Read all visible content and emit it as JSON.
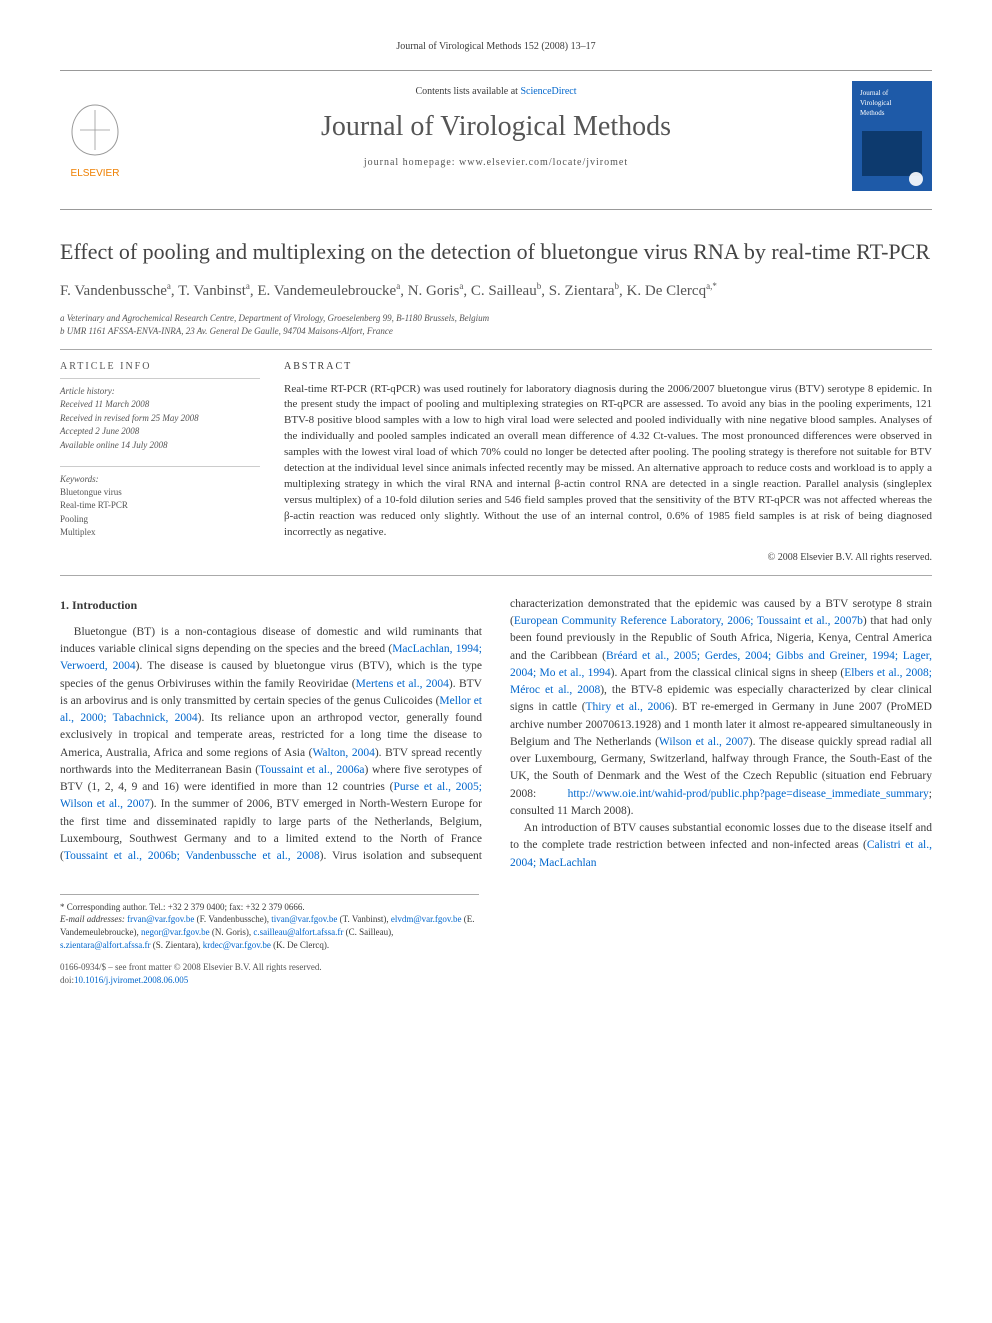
{
  "citation": "Journal of Virological Methods 152 (2008) 13–17",
  "masthead": {
    "contents_prefix": "Contents lists available at ",
    "contents_link": "ScienceDirect",
    "journal_name": "Journal of Virological Methods",
    "homepage_prefix": "journal homepage: ",
    "homepage_url": "www.elsevier.com/locate/jviromet",
    "publisher_logo_label": "ELSEVIER",
    "cover_label": "Journal of Virological Methods"
  },
  "title": "Effect of pooling and multiplexing on the detection of bluetongue virus RNA by real-time RT-PCR",
  "authors_html": "F. Vandenbussche<sup>a</sup>, T. Vanbinst<sup>a</sup>, E. Vandemeulebroucke<sup>a</sup>, N. Goris<sup>a</sup>, C. Sailleau<sup>b</sup>, S. Zientara<sup>b</sup>, K. De Clercq<sup>a,*</sup>",
  "affiliations": [
    "a Veterinary and Agrochemical Research Centre, Department of Virology, Groeselenberg 99, B-1180 Brussels, Belgium",
    "b UMR 1161 AFSSA-ENVA-INRA, 23 Av. General De Gaulle, 94704 Maisons-Alfort, France"
  ],
  "article_info_label": "ARTICLE INFO",
  "history_label": "Article history:",
  "history": [
    "Received 11 March 2008",
    "Received in revised form 25 May 2008",
    "Accepted 2 June 2008",
    "Available online 14 July 2008"
  ],
  "keywords_label": "Keywords:",
  "keywords": [
    "Bluetongue virus",
    "Real-time RT-PCR",
    "Pooling",
    "Multiplex"
  ],
  "abstract_label": "ABSTRACT",
  "abstract": "Real-time RT-PCR (RT-qPCR) was used routinely for laboratory diagnosis during the 2006/2007 bluetongue virus (BTV) serotype 8 epidemic. In the present study the impact of pooling and multiplexing strategies on RT-qPCR are assessed. To avoid any bias in the pooling experiments, 121 BTV-8 positive blood samples with a low to high viral load were selected and pooled individually with nine negative blood samples. Analyses of the individually and pooled samples indicated an overall mean difference of 4.32 Ct-values. The most pronounced differences were observed in samples with the lowest viral load of which 70% could no longer be detected after pooling. The pooling strategy is therefore not suitable for BTV detection at the individual level since animals infected recently may be missed. An alternative approach to reduce costs and workload is to apply a multiplexing strategy in which the viral RNA and internal β-actin control RNA are detected in a single reaction. Parallel analysis (singleplex versus multiplex) of a 10-fold dilution series and 546 field samples proved that the sensitivity of the BTV RT-qPCR was not affected whereas the β-actin reaction was reduced only slightly. Without the use of an internal control, 0.6% of 1985 field samples is at risk of being diagnosed incorrectly as negative.",
  "copyright": "© 2008 Elsevier B.V. All rights reserved.",
  "section1_heading": "1. Introduction",
  "intro_para1_a": "Bluetongue (BT) is a non-contagious disease of domestic and wild ruminants that induces variable clinical signs depending on the species and the breed (",
  "intro_ref1": "MacLachlan, 1994; Verwoerd, 2004",
  "intro_para1_b": "). The disease is caused by bluetongue virus (BTV), which is the type species of the genus Orbiviruses within the family Reoviridae (",
  "intro_ref2": "Mertens et al., 2004",
  "intro_para1_c": "). BTV is an arbovirus and is only transmitted by certain species of the genus Culicoides (",
  "intro_ref3": "Mellor et al., 2000; Tabachnick, 2004",
  "intro_para1_d": "). Its reliance upon an arthropod vector, generally found exclusively in tropical and temperate areas, restricted for a long time the disease to America, Australia, Africa and some regions of Asia (",
  "intro_ref4": "Walton, 2004",
  "intro_para1_e": "). BTV spread recently northwards into the Mediterranean Basin (",
  "intro_ref5": "Toussaint et al., 2006a",
  "intro_para1_f": ") where five serotypes of BTV (1, 2, 4, 9 and 16) were identified in more than 12 countries (",
  "intro_ref6": "Purse et al., 2005; Wilson et al., 2007",
  "intro_para1_g": "). In the summer of 2006, BTV emerged in North-Western Europe for the first time",
  "intro_para1_h": " and disseminated rapidly to large parts of the Netherlands, Belgium, Luxembourg, Southwest Germany and to a limited extend to the North of France (",
  "intro_ref7": "Toussaint et al., 2006b; Vandenbussche et al., 2008",
  "intro_para1_i": "). Virus isolation and subsequent characterization demonstrated that the epidemic was caused by a BTV serotype 8 strain (",
  "intro_ref8": "European Community Reference Laboratory, 2006; Toussaint et al., 2007b",
  "intro_para1_j": ") that had only been found previously in the Republic of South Africa, Nigeria, Kenya, Central America and the Caribbean (",
  "intro_ref9": "Bréard et al., 2005; Gerdes, 2004; Gibbs and Greiner, 1994; Lager, 2004; Mo et al., 1994",
  "intro_para1_k": "). Apart from the classical clinical signs in sheep (",
  "intro_ref10": "Elbers et al., 2008; Méroc et al., 2008",
  "intro_para1_l": "), the BTV-8 epidemic was especially characterized by clear clinical signs in cattle (",
  "intro_ref11": "Thiry et al., 2006",
  "intro_para1_m": "). BT re-emerged in Germany in June 2007 (ProMED archive number 20070613.1928) and 1 month later it almost re-appeared simultaneously in Belgium and The Netherlands (",
  "intro_ref12": "Wilson et al., 2007",
  "intro_para1_n": "). The disease quickly spread radial all over Luxembourg, Germany, Switzerland, halfway through France, the South-East of the UK, the South of Denmark and the West of the Czech Republic (situation end February 2008: ",
  "intro_url1": "http://www.oie.int/wahid-prod/public.php?page=disease_immediate_summary",
  "intro_para1_o": "; consulted 11 March 2008).",
  "intro_para2_a": "An introduction of BTV causes substantial economic losses due to the disease itself and to the complete trade restriction between infected and non-infected areas (",
  "intro_ref13": "Calistri et al., 2004; MacLachlan",
  "footnote": {
    "corr_label": "* Corresponding author. Tel.: +32 2 379 0400; fax: +32 2 379 0666.",
    "email_label": "E-mail addresses: ",
    "emails": [
      {
        "addr": "frvan@var.fgov.be",
        "name": "(F. Vandenbussche), "
      },
      {
        "addr": "tivan@var.fgov.be",
        "name": "(T. Vanbinst), "
      },
      {
        "addr": "elvdm@var.fgov.be",
        "name": "(E. Vandemeulebroucke), "
      },
      {
        "addr": "negor@var.fgov.be",
        "name": "(N. Goris), "
      },
      {
        "addr": "c.sailleau@alfort.afssa.fr",
        "name": "(C. Sailleau), "
      },
      {
        "addr": "s.zientara@alfort.afssa.fr",
        "name": "(S. Zientara), "
      },
      {
        "addr": "krdec@var.fgov.be",
        "name": "(K. De Clercq)."
      }
    ]
  },
  "footer": {
    "issn_line": "0166-0934/$ – see front matter © 2008 Elsevier B.V. All rights reserved.",
    "doi_label": "doi:",
    "doi": "10.1016/j.jviromet.2008.06.005"
  },
  "colors": {
    "link": "#0066cc",
    "text": "#3a3a3a",
    "rule": "#999999",
    "elsevier_orange": "#ee7f00",
    "cover_blue": "#1e5aa8"
  }
}
